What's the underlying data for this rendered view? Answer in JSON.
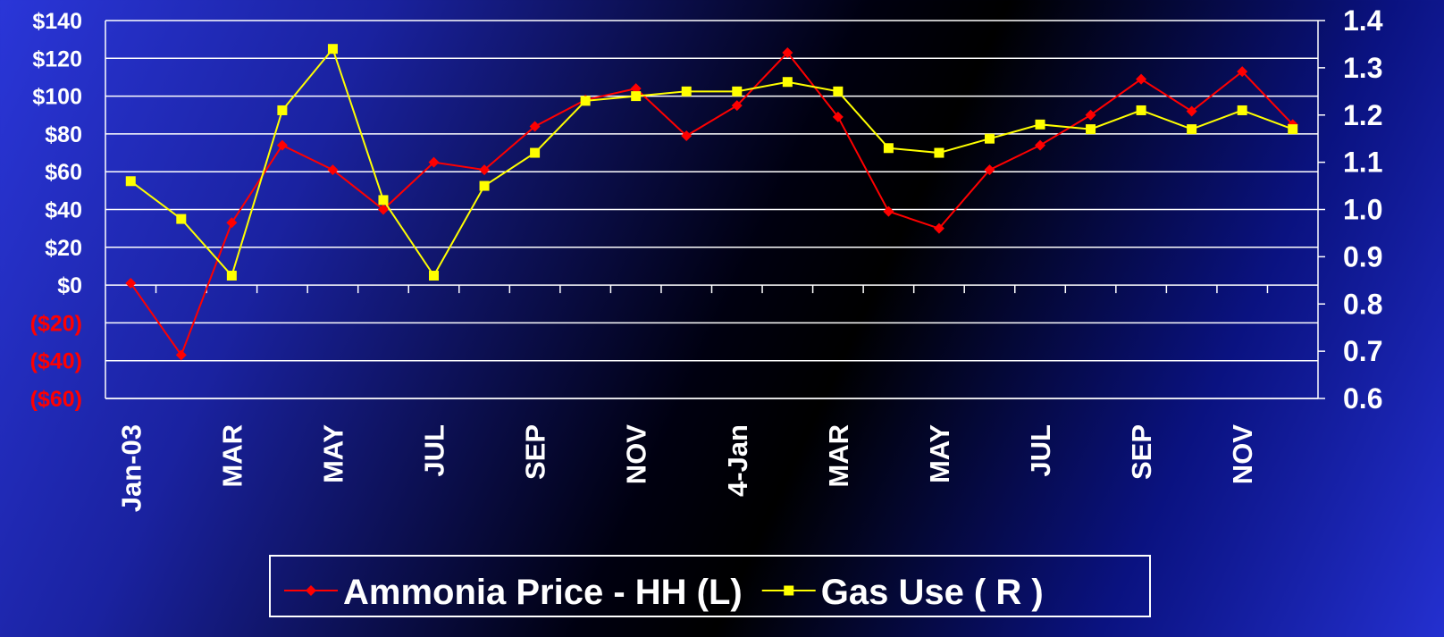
{
  "chart_data": {
    "type": "line",
    "categories": [
      "Jan-03",
      null,
      "MAR",
      null,
      "MAY",
      null,
      "JUL",
      null,
      "SEP",
      null,
      "NOV",
      null,
      "4-Jan",
      null,
      "MAR",
      null,
      "MAY",
      null,
      "JUL",
      null,
      "SEP",
      null,
      "NOV",
      null
    ],
    "series": [
      {
        "name": "Ammonia Price - HH (L)",
        "color": "#ff0000",
        "marker": "diamond",
        "values": [
          1,
          -37,
          33,
          74,
          61,
          40,
          65,
          61,
          84,
          98,
          104,
          79,
          95,
          123,
          89,
          39,
          30,
          61,
          74,
          90,
          109,
          92,
          113,
          85
        ]
      },
      {
        "name": "Gas Use ( R )",
        "color": "#ffff00",
        "marker": "square",
        "axis": "y2",
        "values": [
          1.06,
          0.98,
          0.86,
          1.21,
          1.34,
          1.02,
          0.86,
          1.05,
          1.12,
          1.23,
          1.24,
          1.25,
          1.25,
          1.27,
          1.25,
          1.13,
          1.12,
          1.15,
          1.18,
          1.17,
          1.21,
          1.17,
          1.21,
          1.17
        ]
      }
    ],
    "ylim": [
      -60,
      140
    ],
    "yticks": [
      {
        "value": -60,
        "label": "($60)"
      },
      {
        "value": -40,
        "label": "($40)"
      },
      {
        "value": -20,
        "label": "($20)"
      },
      {
        "value": 0,
        "label": "$0"
      },
      {
        "value": 20,
        "label": "$20"
      },
      {
        "value": 40,
        "label": "$40"
      },
      {
        "value": 60,
        "label": "$60"
      },
      {
        "value": 80,
        "label": "$80"
      },
      {
        "value": 100,
        "label": "$100"
      },
      {
        "value": 120,
        "label": "$120"
      },
      {
        "value": 140,
        "label": "$140"
      }
    ],
    "negative_tick_color": "#ff0000",
    "y2lim": [
      0.6,
      1.4
    ],
    "y2ticks": [
      0.6,
      0.7,
      0.8,
      0.9,
      {
        "value": 1,
        "label": "1.0"
      },
      1.1,
      1.2,
      1.3,
      1.4
    ],
    "grid": true,
    "legend": "bottom"
  }
}
